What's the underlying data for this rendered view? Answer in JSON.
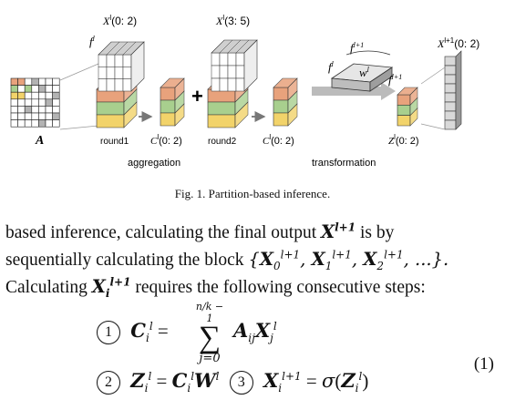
{
  "figure": {
    "labels": {
      "xl_02": "X",
      "xl_02_sup": "l",
      "xl_02_args": "(0: 2)",
      "xl_35": "X",
      "xl_35_sup": "l",
      "xl_35_args": "(3: 5)",
      "fl_left": "f",
      "fl_left_sup": "l",
      "fl1_top": "f",
      "fl1_top_sup": "l+1",
      "fl_mid": "f",
      "fl_mid_sup": "l",
      "wl": "w",
      "wl_sup": "l",
      "fl1_right": "f",
      "fl1_right_sup": "l+1",
      "xl1_02": "X",
      "xl1_02_sup": "l+1",
      "xl1_02_args": "(0: 2)",
      "a": "A",
      "round1": "round1",
      "cl_02a": "C",
      "cl_02a_sup": "l",
      "cl_02a_args": "(0: 2)",
      "round2": "round2",
      "cl_02b": "C",
      "cl_02b_sup": "l",
      "cl_02b_args": "(0: 2)",
      "zl_02": "Z",
      "zl_02_sup": "l",
      "zl_02_args": "(0: 2)",
      "aggregation": "aggregation",
      "transformation": "transformation",
      "plus": "+"
    },
    "colors": {
      "orange": "#e8a27c",
      "green": "#a8cf8e",
      "yellow": "#f2d36a",
      "gray": "#b3b3b3",
      "dark": "#5a5a5a"
    }
  },
  "caption": "Fig. 1.  Partition-based inference.",
  "paragraph": {
    "l1_a": "based inference, calculating the final output",
    "l1_b": "is by",
    "l2_a": "sequentially calculating the block",
    "l3_a": "Calculating",
    "l3_b": "requires the following consecutive steps:"
  },
  "equations": {
    "step1": "1",
    "step2": "2",
    "step3": "3",
    "number": "(1)",
    "sum_top": "n/k − 1",
    "sum_bottom": "j=0",
    "sigma": "σ"
  }
}
